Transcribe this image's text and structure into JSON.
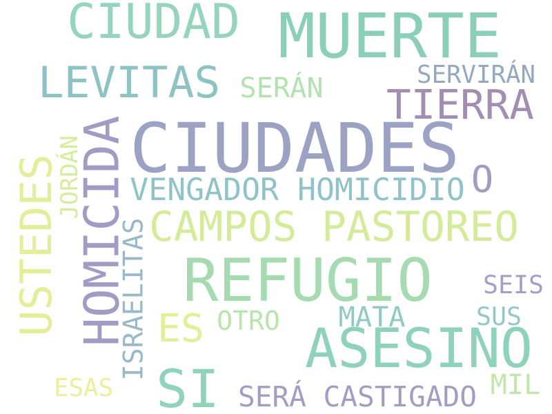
{
  "words": [
    {
      "text": "CIUDADES",
      "color": "#9ca2c3",
      "orientation": "horizontal"
    },
    {
      "text": "MUERTE",
      "color": "#8ccfb8",
      "orientation": "horizontal"
    },
    {
      "text": "REFUGIO",
      "color": "#a6dbb1",
      "orientation": "horizontal"
    },
    {
      "text": "ASESINO",
      "color": "#8ed2bb",
      "orientation": "horizontal"
    },
    {
      "text": "CIUDAD",
      "color": "#95d5bb",
      "orientation": "horizontal"
    },
    {
      "text": "HOMICIDA",
      "color": "#a39bc4",
      "orientation": "vertical"
    },
    {
      "text": "LEVITAS",
      "color": "#8ec3c4",
      "orientation": "horizontal"
    },
    {
      "text": "TIERRA",
      "color": "#a38eb3",
      "orientation": "horizontal"
    },
    {
      "text": "SI",
      "color": "#8fd3b9",
      "orientation": "horizontal"
    },
    {
      "text": "USTEDES",
      "color": "#e4ee98",
      "orientation": "vertical"
    },
    {
      "text": "CAMPOS PASTOREO",
      "color": "#d4eb9a",
      "orientation": "horizontal"
    },
    {
      "text": "VENGADOR HOMICIDIO",
      "color": "#8fc3c7",
      "orientation": "horizontal"
    },
    {
      "text": "O",
      "color": "#a09dc4",
      "orientation": "horizontal"
    },
    {
      "text": "ES",
      "color": "#e0ef98",
      "orientation": "horizontal"
    },
    {
      "text": "SERÁ CASTIGADO",
      "color": "#a19ec4",
      "orientation": "horizontal"
    },
    {
      "text": "ISRAELITAS",
      "color": "#99b9c9",
      "orientation": "vertical"
    },
    {
      "text": "SERÁN",
      "color": "#b3e2b0",
      "orientation": "horizontal"
    },
    {
      "text": "SERVIRÁN",
      "color": "#94a8c2",
      "orientation": "horizontal"
    },
    {
      "text": "JORDÁN",
      "color": "#d6ec9c",
      "orientation": "vertical"
    },
    {
      "text": "OTRO",
      "color": "#b9e4ad",
      "orientation": "horizontal"
    },
    {
      "text": "MATA",
      "color": "#90cbc2",
      "orientation": "horizontal"
    },
    {
      "text": "SEIS",
      "color": "#a59ec6",
      "orientation": "horizontal"
    },
    {
      "text": "SUS",
      "color": "#94c8c6",
      "orientation": "horizontal"
    },
    {
      "text": "MIL",
      "color": "#c3e6ac",
      "orientation": "horizontal"
    },
    {
      "text": "ESAS",
      "color": "#eeee9d",
      "orientation": "horizontal"
    }
  ]
}
